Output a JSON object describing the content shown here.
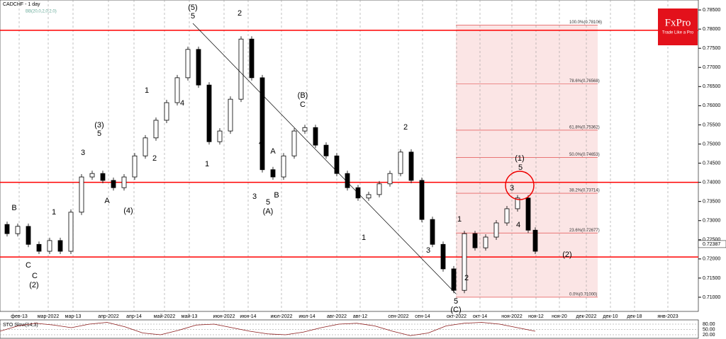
{
  "chart_data": {
    "type": "candlestick",
    "title": "CADCHF - 1 day",
    "subtitle": "BB(20,0,2,0,2.0)",
    "brand": {
      "name": "FxPro",
      "tagline": "Trade Like a Pro"
    },
    "up_color": "#000000",
    "down_color": "#000000",
    "x": [
      2,
      5,
      8,
      11,
      14,
      17,
      20,
      23,
      26,
      29,
      32,
      35,
      38,
      41,
      44,
      47,
      50,
      53,
      56,
      59,
      62,
      65,
      68,
      71,
      74,
      77,
      80,
      83,
      86,
      89,
      92,
      95,
      98,
      101,
      104,
      107,
      110,
      113,
      116,
      119,
      122,
      125,
      128,
      131,
      134,
      137,
      140,
      143,
      146,
      149,
      151
    ],
    "open": [
      0.729,
      0.7266,
      0.7285,
      0.7238,
      0.722,
      0.7248,
      0.722,
      0.7322,
      0.7414,
      0.7423,
      0.7405,
      0.7386,
      0.7414,
      0.7469,
      0.7516,
      0.7562,
      0.7608,
      0.7673,
      0.7747,
      0.7654,
      0.7506,
      0.7534,
      0.7617,
      0.7774,
      0.7673,
      0.7433,
      0.7414,
      0.7469,
      0.7534,
      0.7543,
      0.7497,
      0.7469,
      0.7423,
      0.7386,
      0.7359,
      0.7368,
      0.7396,
      0.7423,
      0.7479,
      0.7405,
      0.7303,
      0.7238,
      0.7174,
      0.7118,
      0.7266,
      0.7229,
      0.7257,
      0.7294,
      0.7331,
      0.7359,
      0.7275
    ],
    "close": [
      0.7266,
      0.7285,
      0.7238,
      0.722,
      0.7248,
      0.722,
      0.7322,
      0.7414,
      0.7423,
      0.7405,
      0.7386,
      0.7414,
      0.7469,
      0.7516,
      0.7562,
      0.7608,
      0.7673,
      0.7747,
      0.7654,
      0.7506,
      0.7534,
      0.7617,
      0.7774,
      0.7673,
      0.7433,
      0.7414,
      0.7469,
      0.7534,
      0.7543,
      0.7497,
      0.7469,
      0.7423,
      0.7386,
      0.7359,
      0.7368,
      0.7396,
      0.7423,
      0.7479,
      0.7405,
      0.7303,
      0.7238,
      0.7174,
      0.7118,
      0.7266,
      0.7229,
      0.7257,
      0.7294,
      0.7331,
      0.7359,
      0.7275,
      0.722
    ],
    "xlim": [
      0,
      197
    ],
    "xticks": [
      {
        "value": 5.4,
        "label": "фев-13"
      },
      {
        "value": 13.6,
        "label": "мар-2022"
      },
      {
        "value": 20.6,
        "label": "мар-13"
      },
      {
        "value": 30.6,
        "label": "апр-2022"
      },
      {
        "value": 37.8,
        "label": "апр-14"
      },
      {
        "value": 46.4,
        "label": "май-2022"
      },
      {
        "value": 53.4,
        "label": "май-13"
      },
      {
        "value": 63.2,
        "label": "июн-2022"
      },
      {
        "value": 70,
        "label": "июн-14"
      },
      {
        "value": 79.4,
        "label": "июл-2022"
      },
      {
        "value": 86.6,
        "label": "июл-14"
      },
      {
        "value": 95,
        "label": "авг-2022"
      },
      {
        "value": 101.6,
        "label": "авг-12"
      },
      {
        "value": 112.4,
        "label": "сен-2022"
      },
      {
        "value": 119.2,
        "label": "сен-14"
      },
      {
        "value": 128.8,
        "label": "окт-2022"
      },
      {
        "value": 135.4,
        "label": "окт-14"
      },
      {
        "value": 144.4,
        "label": "ноя-2022"
      },
      {
        "value": 151.2,
        "label": "ноя-12"
      },
      {
        "value": 157.8,
        "label": "ноя-20"
      },
      {
        "value": 165.4,
        "label": "дек-2022"
      },
      {
        "value": 172.2,
        "label": "дек-10"
      },
      {
        "value": 179,
        "label": "дек-18"
      },
      {
        "value": 188.4,
        "label": "янв-2023"
      }
    ],
    "ylim": [
      0.7063,
      0.7876
    ],
    "yticks": [
      {
        "value": 0.71,
        "label": "0.71000"
      },
      {
        "value": 0.715,
        "label": "0.71500"
      },
      {
        "value": 0.72,
        "label": "0.72000"
      },
      {
        "value": 0.725,
        "label": "0.72500"
      },
      {
        "value": 0.73,
        "label": "0.73000"
      },
      {
        "value": 0.735,
        "label": "0.73500"
      },
      {
        "value": 0.74,
        "label": "0.74000"
      },
      {
        "value": 0.745,
        "label": "0.74500"
      },
      {
        "value": 0.75,
        "label": "0.75000"
      },
      {
        "value": 0.755,
        "label": "0.75500"
      },
      {
        "value": 0.76,
        "label": "0.76000"
      },
      {
        "value": 0.765,
        "label": "0.76500"
      },
      {
        "value": 0.77,
        "label": "0.77000"
      },
      {
        "value": 0.775,
        "label": "0.77500"
      },
      {
        "value": 0.78,
        "label": "0.78000"
      },
      {
        "value": 0.785,
        "label": "0.78500"
      }
    ],
    "current_price": {
      "value": 0.72387,
      "label": "0.72387"
    },
    "levels": [
      0.7797,
      0.74,
      0.7205
    ],
    "level_color": "#ff0000",
    "fib_levels": [
      {
        "value": 0.78106,
        "label": "100.0%(0.78106)"
      },
      {
        "value": 0.76568,
        "label": "78.6%(0.76568)"
      },
      {
        "value": 0.75362,
        "label": "61.8%(0.75362)"
      },
      {
        "value": 0.74653,
        "label": "50.0%(0.74653)"
      },
      {
        "value": 0.73714,
        "label": "38.2%(0.73714)"
      },
      {
        "value": 0.72677,
        "label": "23.6%(0.72677)"
      },
      {
        "value": 0.71,
        "label": "0.0%(0.71000)"
      }
    ],
    "annotations": [
      "(5)",
      "5",
      "2",
      "(3)",
      "5",
      "3",
      "1",
      "B",
      "C",
      "(4)",
      "1",
      "2",
      "4",
      "1",
      "(B)",
      "C",
      "4",
      "A",
      "3",
      "5",
      "(A)",
      "B",
      "2",
      "1",
      "(1)",
      "5",
      "3",
      "4",
      "(2)",
      "1",
      "2",
      "3",
      "C",
      "(2)",
      "A",
      "5",
      "(C)"
    ],
    "oscillator": {
      "title": "STO Slow(14,3)",
      "ylim": [
        0,
        100
      ],
      "yticks": [
        {
          "value": 80,
          "label": "80.00"
        },
        {
          "value": 50,
          "label": "50.00"
        },
        {
          "value": 20,
          "label": "20.00"
        }
      ],
      "values": [
        40,
        70,
        85,
        75,
        60,
        80,
        90,
        65,
        30,
        20,
        45,
        75,
        80,
        60,
        40,
        25,
        20,
        35,
        60,
        80,
        85,
        70,
        40,
        15,
        30,
        70,
        85,
        90,
        80,
        60,
        40
      ]
    }
  }
}
